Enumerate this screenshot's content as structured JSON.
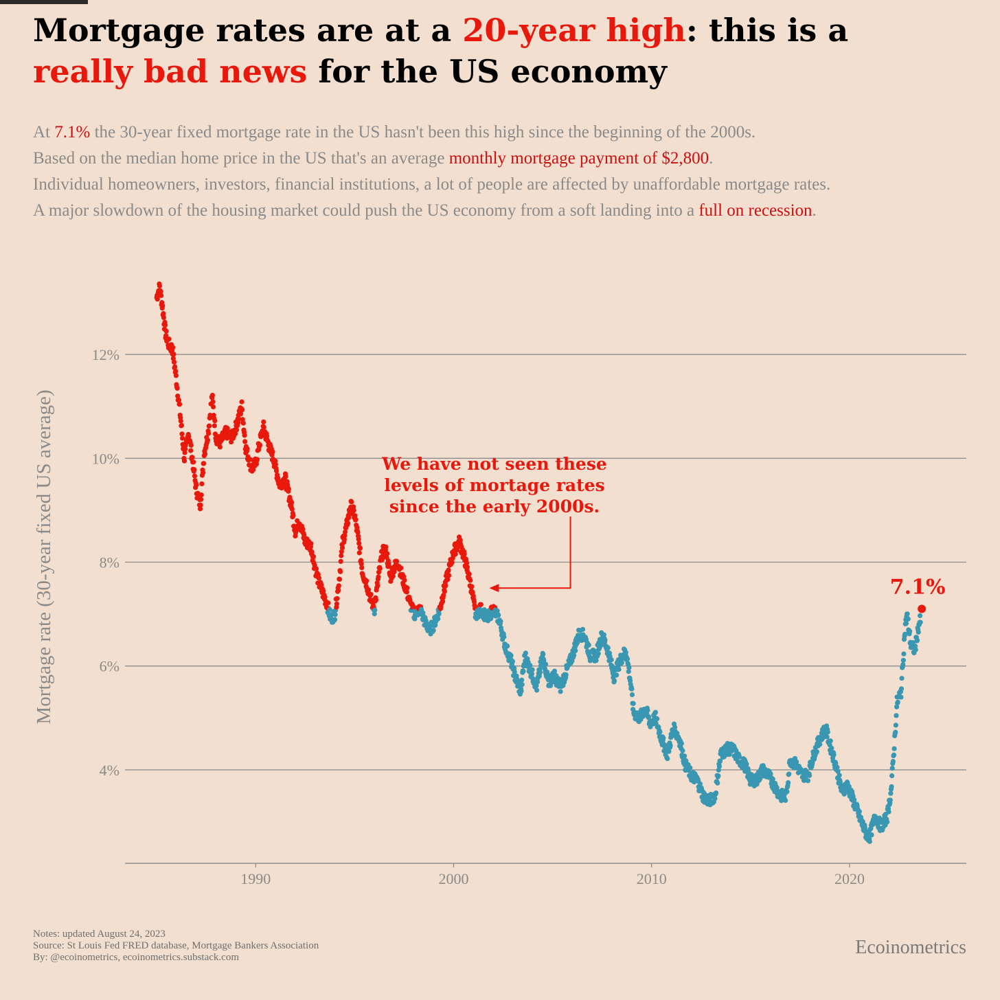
{
  "header": {
    "title_line1_a": "Mortgage rates are at a ",
    "title_line1_b": "20-year high",
    "title_line1_c": ": this is a",
    "title_line2_a": "really bad news",
    "title_line2_b": " for the US economy",
    "subtitle": [
      {
        "a": "At ",
        "b": "7.1%",
        "c": " the 30-year fixed mortgage rate in the US hasn't been this high since the beginning of the 2000s."
      },
      {
        "a": "Based on the median home price in the US that's an average ",
        "b": "monthly mortgage payment of $2,800",
        "c": "."
      },
      {
        "a": "Individual homeowners, investors, financial institutions, a lot of people are affected by unaffordable mortgage rates.",
        "b": "",
        "c": ""
      },
      {
        "a": "A major slowdown of the housing market could push the US economy from a soft landing into a ",
        "b": "full on recession",
        "c": "."
      }
    ]
  },
  "chart_data": {
    "type": "scatter",
    "ylabel": "Mortgage rate (30-year fixed US average)",
    "xlabel": "",
    "xlim": [
      1983.4,
      2025.9
    ],
    "ylim": [
      2.2,
      13.8
    ],
    "xticks": [
      1990,
      2000,
      2010,
      2020
    ],
    "xtick_labels": [
      "1990",
      "2000",
      "2010",
      "2020"
    ],
    "yticks": [
      4,
      6,
      8,
      10,
      12
    ],
    "ytick_labels": [
      "4%",
      "6%",
      "8%",
      "10%",
      "12%"
    ],
    "grid": "horizontal",
    "threshold": 7.1,
    "colors": {
      "above": "#e8190c",
      "below": "#3a97b2",
      "grid": "#8e8e8e",
      "axis_text": "#8a8a8a"
    },
    "series_points": [
      [
        1985.0,
        13.1
      ],
      [
        1985.15,
        13.3
      ],
      [
        1985.3,
        12.9
      ],
      [
        1985.45,
        12.4
      ],
      [
        1985.6,
        12.2
      ],
      [
        1985.8,
        12.1
      ],
      [
        1986.0,
        11.5
      ],
      [
        1986.2,
        10.8
      ],
      [
        1986.4,
        10.0
      ],
      [
        1986.6,
        10.5
      ],
      [
        1986.8,
        10.0
      ],
      [
        1987.0,
        9.4
      ],
      [
        1987.2,
        9.1
      ],
      [
        1987.4,
        10.1
      ],
      [
        1987.6,
        10.5
      ],
      [
        1987.8,
        11.2
      ],
      [
        1988.0,
        10.4
      ],
      [
        1988.2,
        10.3
      ],
      [
        1988.5,
        10.5
      ],
      [
        1988.8,
        10.4
      ],
      [
        1989.0,
        10.6
      ],
      [
        1989.3,
        11.0
      ],
      [
        1989.5,
        10.2
      ],
      [
        1989.8,
        9.8
      ],
      [
        1990.0,
        9.9
      ],
      [
        1990.2,
        10.3
      ],
      [
        1990.4,
        10.6
      ],
      [
        1990.7,
        10.2
      ],
      [
        1990.9,
        10.0
      ],
      [
        1991.2,
        9.5
      ],
      [
        1991.5,
        9.6
      ],
      [
        1991.8,
        9.1
      ],
      [
        1992.0,
        8.6
      ],
      [
        1992.2,
        8.8
      ],
      [
        1992.5,
        8.4
      ],
      [
        1992.8,
        8.3
      ],
      [
        1993.0,
        7.9
      ],
      [
        1993.2,
        7.6
      ],
      [
        1993.4,
        7.4
      ],
      [
        1993.6,
        7.2
      ],
      [
        1993.8,
        6.9
      ],
      [
        1994.0,
        7.0
      ],
      [
        1994.2,
        7.6
      ],
      [
        1994.4,
        8.4
      ],
      [
        1994.6,
        8.7
      ],
      [
        1994.8,
        9.1
      ],
      [
        1995.0,
        8.9
      ],
      [
        1995.2,
        8.4
      ],
      [
        1995.4,
        7.8
      ],
      [
        1995.6,
        7.6
      ],
      [
        1995.8,
        7.3
      ],
      [
        1996.0,
        7.1
      ],
      [
        1996.2,
        7.7
      ],
      [
        1996.4,
        8.2
      ],
      [
        1996.6,
        8.2
      ],
      [
        1996.8,
        7.7
      ],
      [
        1997.0,
        7.9
      ],
      [
        1997.2,
        8.0
      ],
      [
        1997.4,
        7.7
      ],
      [
        1997.6,
        7.5
      ],
      [
        1997.8,
        7.2
      ],
      [
        1998.0,
        7.0
      ],
      [
        1998.3,
        7.1
      ],
      [
        1998.6,
        6.8
      ],
      [
        1998.8,
        6.7
      ],
      [
        1999.0,
        6.8
      ],
      [
        1999.3,
        7.1
      ],
      [
        1999.6,
        7.6
      ],
      [
        1999.8,
        7.9
      ],
      [
        2000.0,
        8.2
      ],
      [
        2000.3,
        8.4
      ],
      [
        2000.6,
        8.0
      ],
      [
        2000.9,
        7.5
      ],
      [
        2001.1,
        7.0
      ],
      [
        2001.4,
        7.1
      ],
      [
        2001.7,
        6.9
      ],
      [
        2002.0,
        7.1
      ],
      [
        2002.3,
        6.9
      ],
      [
        2002.6,
        6.4
      ],
      [
        2002.9,
        6.1
      ],
      [
        2003.1,
        5.8
      ],
      [
        2003.4,
        5.5
      ],
      [
        2003.6,
        6.2
      ],
      [
        2003.9,
        5.9
      ],
      [
        2004.2,
        5.6
      ],
      [
        2004.5,
        6.2
      ],
      [
        2004.8,
        5.7
      ],
      [
        2005.1,
        5.8
      ],
      [
        2005.4,
        5.6
      ],
      [
        2005.7,
        5.9
      ],
      [
        2006.0,
        6.2
      ],
      [
        2006.3,
        6.6
      ],
      [
        2006.6,
        6.6
      ],
      [
        2006.9,
        6.2
      ],
      [
        2007.2,
        6.2
      ],
      [
        2007.5,
        6.6
      ],
      [
        2007.8,
        6.3
      ],
      [
        2008.1,
        5.8
      ],
      [
        2008.4,
        6.1
      ],
      [
        2008.7,
        6.3
      ],
      [
        2008.9,
        5.8
      ],
      [
        2009.1,
        5.1
      ],
      [
        2009.4,
        5.0
      ],
      [
        2009.7,
        5.2
      ],
      [
        2009.9,
        4.9
      ],
      [
        2010.2,
        5.0
      ],
      [
        2010.5,
        4.6
      ],
      [
        2010.8,
        4.3
      ],
      [
        2011.1,
        4.8
      ],
      [
        2011.4,
        4.6
      ],
      [
        2011.7,
        4.1
      ],
      [
        2012.0,
        3.9
      ],
      [
        2012.3,
        3.8
      ],
      [
        2012.6,
        3.5
      ],
      [
        2012.9,
        3.4
      ],
      [
        2013.2,
        3.5
      ],
      [
        2013.5,
        4.3
      ],
      [
        2013.8,
        4.4
      ],
      [
        2014.1,
        4.4
      ],
      [
        2014.4,
        4.2
      ],
      [
        2014.7,
        4.1
      ],
      [
        2015.0,
        3.8
      ],
      [
        2015.3,
        3.8
      ],
      [
        2015.6,
        4.0
      ],
      [
        2015.9,
        3.9
      ],
      [
        2016.2,
        3.7
      ],
      [
        2016.5,
        3.5
      ],
      [
        2016.8,
        3.5
      ],
      [
        2017.0,
        4.2
      ],
      [
        2017.3,
        4.1
      ],
      [
        2017.6,
        3.9
      ],
      [
        2017.9,
        3.9
      ],
      [
        2018.2,
        4.3
      ],
      [
        2018.5,
        4.6
      ],
      [
        2018.8,
        4.8
      ],
      [
        2019.0,
        4.5
      ],
      [
        2019.3,
        4.1
      ],
      [
        2019.6,
        3.6
      ],
      [
        2019.9,
        3.7
      ],
      [
        2020.2,
        3.4
      ],
      [
        2020.5,
        3.1
      ],
      [
        2020.8,
        2.8
      ],
      [
        2021.0,
        2.7
      ],
      [
        2021.3,
        3.1
      ],
      [
        2021.6,
        2.9
      ],
      [
        2021.9,
        3.1
      ],
      [
        2022.1,
        3.6
      ],
      [
        2022.3,
        4.7
      ],
      [
        2022.4,
        5.3
      ],
      [
        2022.6,
        5.5
      ],
      [
        2022.8,
        6.7
      ],
      [
        2022.9,
        7.0
      ],
      [
        2023.1,
        6.4
      ],
      [
        2023.3,
        6.3
      ],
      [
        2023.5,
        6.8
      ],
      [
        2023.6,
        6.9
      ]
    ],
    "last_point": {
      "x": 2023.65,
      "y": 7.1,
      "label": "7.1%"
    },
    "annotation": {
      "lines": [
        "We have not seen these",
        "levels of mortage rates",
        "since the early 2000s."
      ],
      "arrow_from_x": 2005.9,
      "arrow_target": {
        "x": 2001.8,
        "y": 7.5
      }
    }
  },
  "footer": {
    "notes": [
      "Notes: updated August 24, 2023",
      "Source: St Louis Fed FRED database, Mortgage Bankers Association",
      "By: @ecoinometrics, ecoinometrics.substack.com"
    ],
    "brand": "Ecoinometrics"
  }
}
